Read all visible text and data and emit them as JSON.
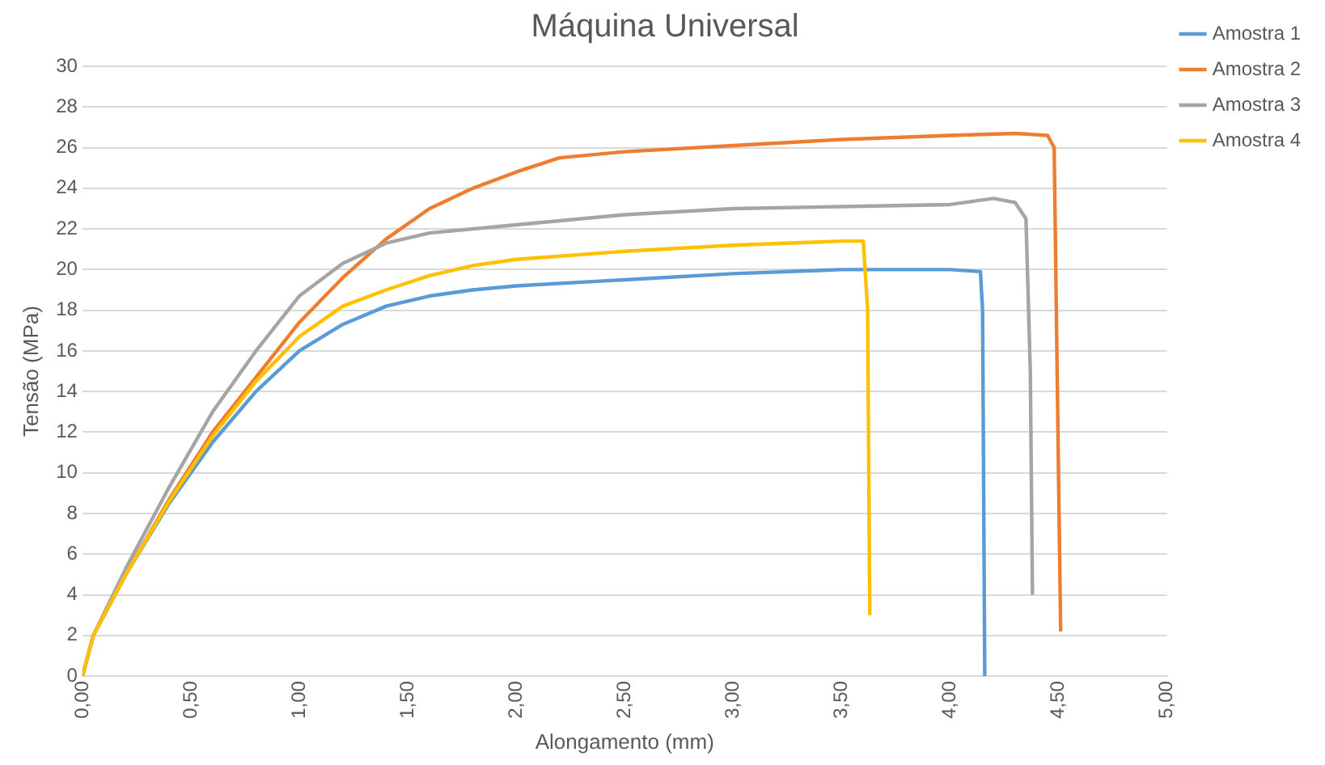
{
  "chart_data": {
    "type": "line",
    "title": "Máquina Universal",
    "xlabel": "Alongamento (mm)",
    "ylabel": "Tensão (MPa)",
    "xlim": [
      0,
      5
    ],
    "xticks": [
      {
        "value": 0,
        "label": "0,00"
      },
      {
        "value": 0.5,
        "label": "0,50"
      },
      {
        "value": 1,
        "label": "1,00"
      },
      {
        "value": 1.5,
        "label": "1,50"
      },
      {
        "value": 2,
        "label": "2,00"
      },
      {
        "value": 2.5,
        "label": "2,50"
      },
      {
        "value": 3,
        "label": "3,00"
      },
      {
        "value": 3.5,
        "label": "3,50"
      },
      {
        "value": 4,
        "label": "4,00"
      },
      {
        "value": 4.5,
        "label": "4,50"
      },
      {
        "value": 5,
        "label": "5,00"
      }
    ],
    "ylim": [
      0,
      30
    ],
    "yticks": [
      0,
      2,
      4,
      6,
      8,
      10,
      12,
      14,
      16,
      18,
      20,
      22,
      24,
      26,
      28,
      30
    ],
    "grid": "y",
    "legend": "top right",
    "marker": "none",
    "line_style": "solid",
    "series": [
      {
        "name": "Amostra 1",
        "color": "#5b9bd5",
        "x": [
          0,
          0.05,
          0.2,
          0.4,
          0.6,
          0.8,
          1.0,
          1.2,
          1.4,
          1.6,
          1.8,
          2.0,
          2.5,
          3.0,
          3.5,
          3.8,
          4.0,
          4.14,
          4.15,
          4.16
        ],
        "values": [
          0,
          2,
          5,
          8.5,
          11.5,
          14,
          16,
          17.3,
          18.2,
          18.7,
          19,
          19.2,
          19.5,
          19.8,
          20,
          20,
          20,
          19.9,
          18,
          0
        ]
      },
      {
        "name": "Amostra 2",
        "color": "#ed7d31",
        "x": [
          0,
          0.05,
          0.2,
          0.4,
          0.6,
          0.8,
          1.0,
          1.2,
          1.4,
          1.6,
          1.8,
          2.0,
          2.2,
          2.5,
          3.0,
          3.5,
          4.0,
          4.3,
          4.45,
          4.48,
          4.5,
          4.51
        ],
        "values": [
          0,
          2,
          5,
          8.7,
          12,
          14.7,
          17.4,
          19.6,
          21.5,
          23,
          24,
          24.8,
          25.5,
          25.8,
          26.1,
          26.4,
          26.6,
          26.7,
          26.6,
          26,
          10,
          2.2
        ]
      },
      {
        "name": "Amostra 3",
        "color": "#a5a5a5",
        "x": [
          0,
          0.05,
          0.2,
          0.4,
          0.6,
          0.8,
          1.0,
          1.2,
          1.4,
          1.6,
          2.0,
          2.5,
          3.0,
          3.5,
          4.0,
          4.2,
          4.3,
          4.35,
          4.37,
          4.38
        ],
        "values": [
          0,
          2,
          5.3,
          9.3,
          13,
          16,
          18.7,
          20.3,
          21.3,
          21.8,
          22.2,
          22.7,
          23,
          23.1,
          23.2,
          23.5,
          23.3,
          22.5,
          15,
          4
        ]
      },
      {
        "name": "Amostra 4",
        "color": "#ffc000",
        "x": [
          0,
          0.05,
          0.2,
          0.4,
          0.6,
          0.8,
          1.0,
          1.2,
          1.4,
          1.6,
          1.8,
          2.0,
          2.5,
          3.0,
          3.5,
          3.6,
          3.62,
          3.63
        ],
        "values": [
          0,
          2,
          5,
          8.6,
          11.8,
          14.5,
          16.7,
          18.2,
          19,
          19.7,
          20.2,
          20.5,
          20.9,
          21.2,
          21.4,
          21.4,
          18,
          3
        ]
      }
    ]
  }
}
